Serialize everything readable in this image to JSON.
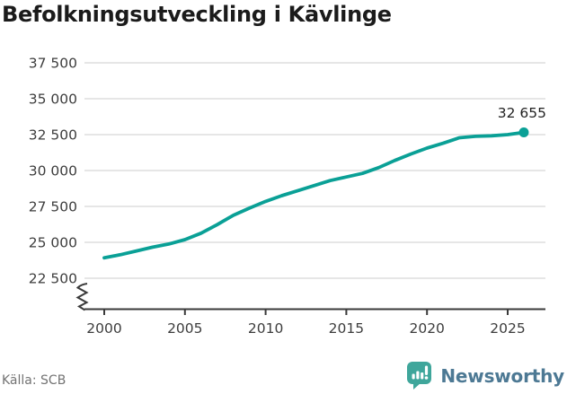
{
  "title": "Befolkningsutveckling i Kävlinge",
  "source": {
    "label": "Källa: SCB"
  },
  "branding": {
    "name": "Newsworthy",
    "icon": "newsworthy-speech-bubble-bar-chart-icon"
  },
  "colors": {
    "background": "#ffffff",
    "line": "#0aa096",
    "grid": "#e2e2e2",
    "axis": "#3a3a3a",
    "tick_text": "#3d3d3d",
    "title_text": "#1b1b1b",
    "end_label_text": "#1f1f1f",
    "source_text": "#737373",
    "brand_text": "#4d7994",
    "brand_icon": "#3fa69b"
  },
  "chart_data": {
    "type": "line",
    "title": "Befolkningsutveckling i Kävlinge",
    "xlabel": "",
    "ylabel": "",
    "grid": "horizontal",
    "legend": "none",
    "axis_break_bottom_left": true,
    "x": [
      2000,
      2001,
      2002,
      2003,
      2004,
      2005,
      2006,
      2007,
      2008,
      2009,
      2010,
      2011,
      2012,
      2013,
      2014,
      2015,
      2016,
      2017,
      2018,
      2019,
      2020,
      2021,
      2022,
      2023,
      2024,
      2025,
      2026
    ],
    "values": [
      23920,
      24140,
      24400,
      24660,
      24880,
      25190,
      25640,
      26230,
      26880,
      27380,
      27850,
      28250,
      28600,
      28950,
      29300,
      29550,
      29800,
      30200,
      30700,
      31150,
      31560,
      31900,
      32280,
      32380,
      32420,
      32500,
      32655
    ],
    "x_ticks": [
      2000,
      2005,
      2010,
      2015,
      2020,
      2025
    ],
    "y_ticks": [
      22500,
      25000,
      27500,
      30000,
      32500,
      35000,
      37500
    ],
    "ylim": [
      21600,
      38750
    ],
    "xlim": [
      1998.8,
      2027.3
    ],
    "end_label": "32 655",
    "last_point_marker": "dot"
  }
}
